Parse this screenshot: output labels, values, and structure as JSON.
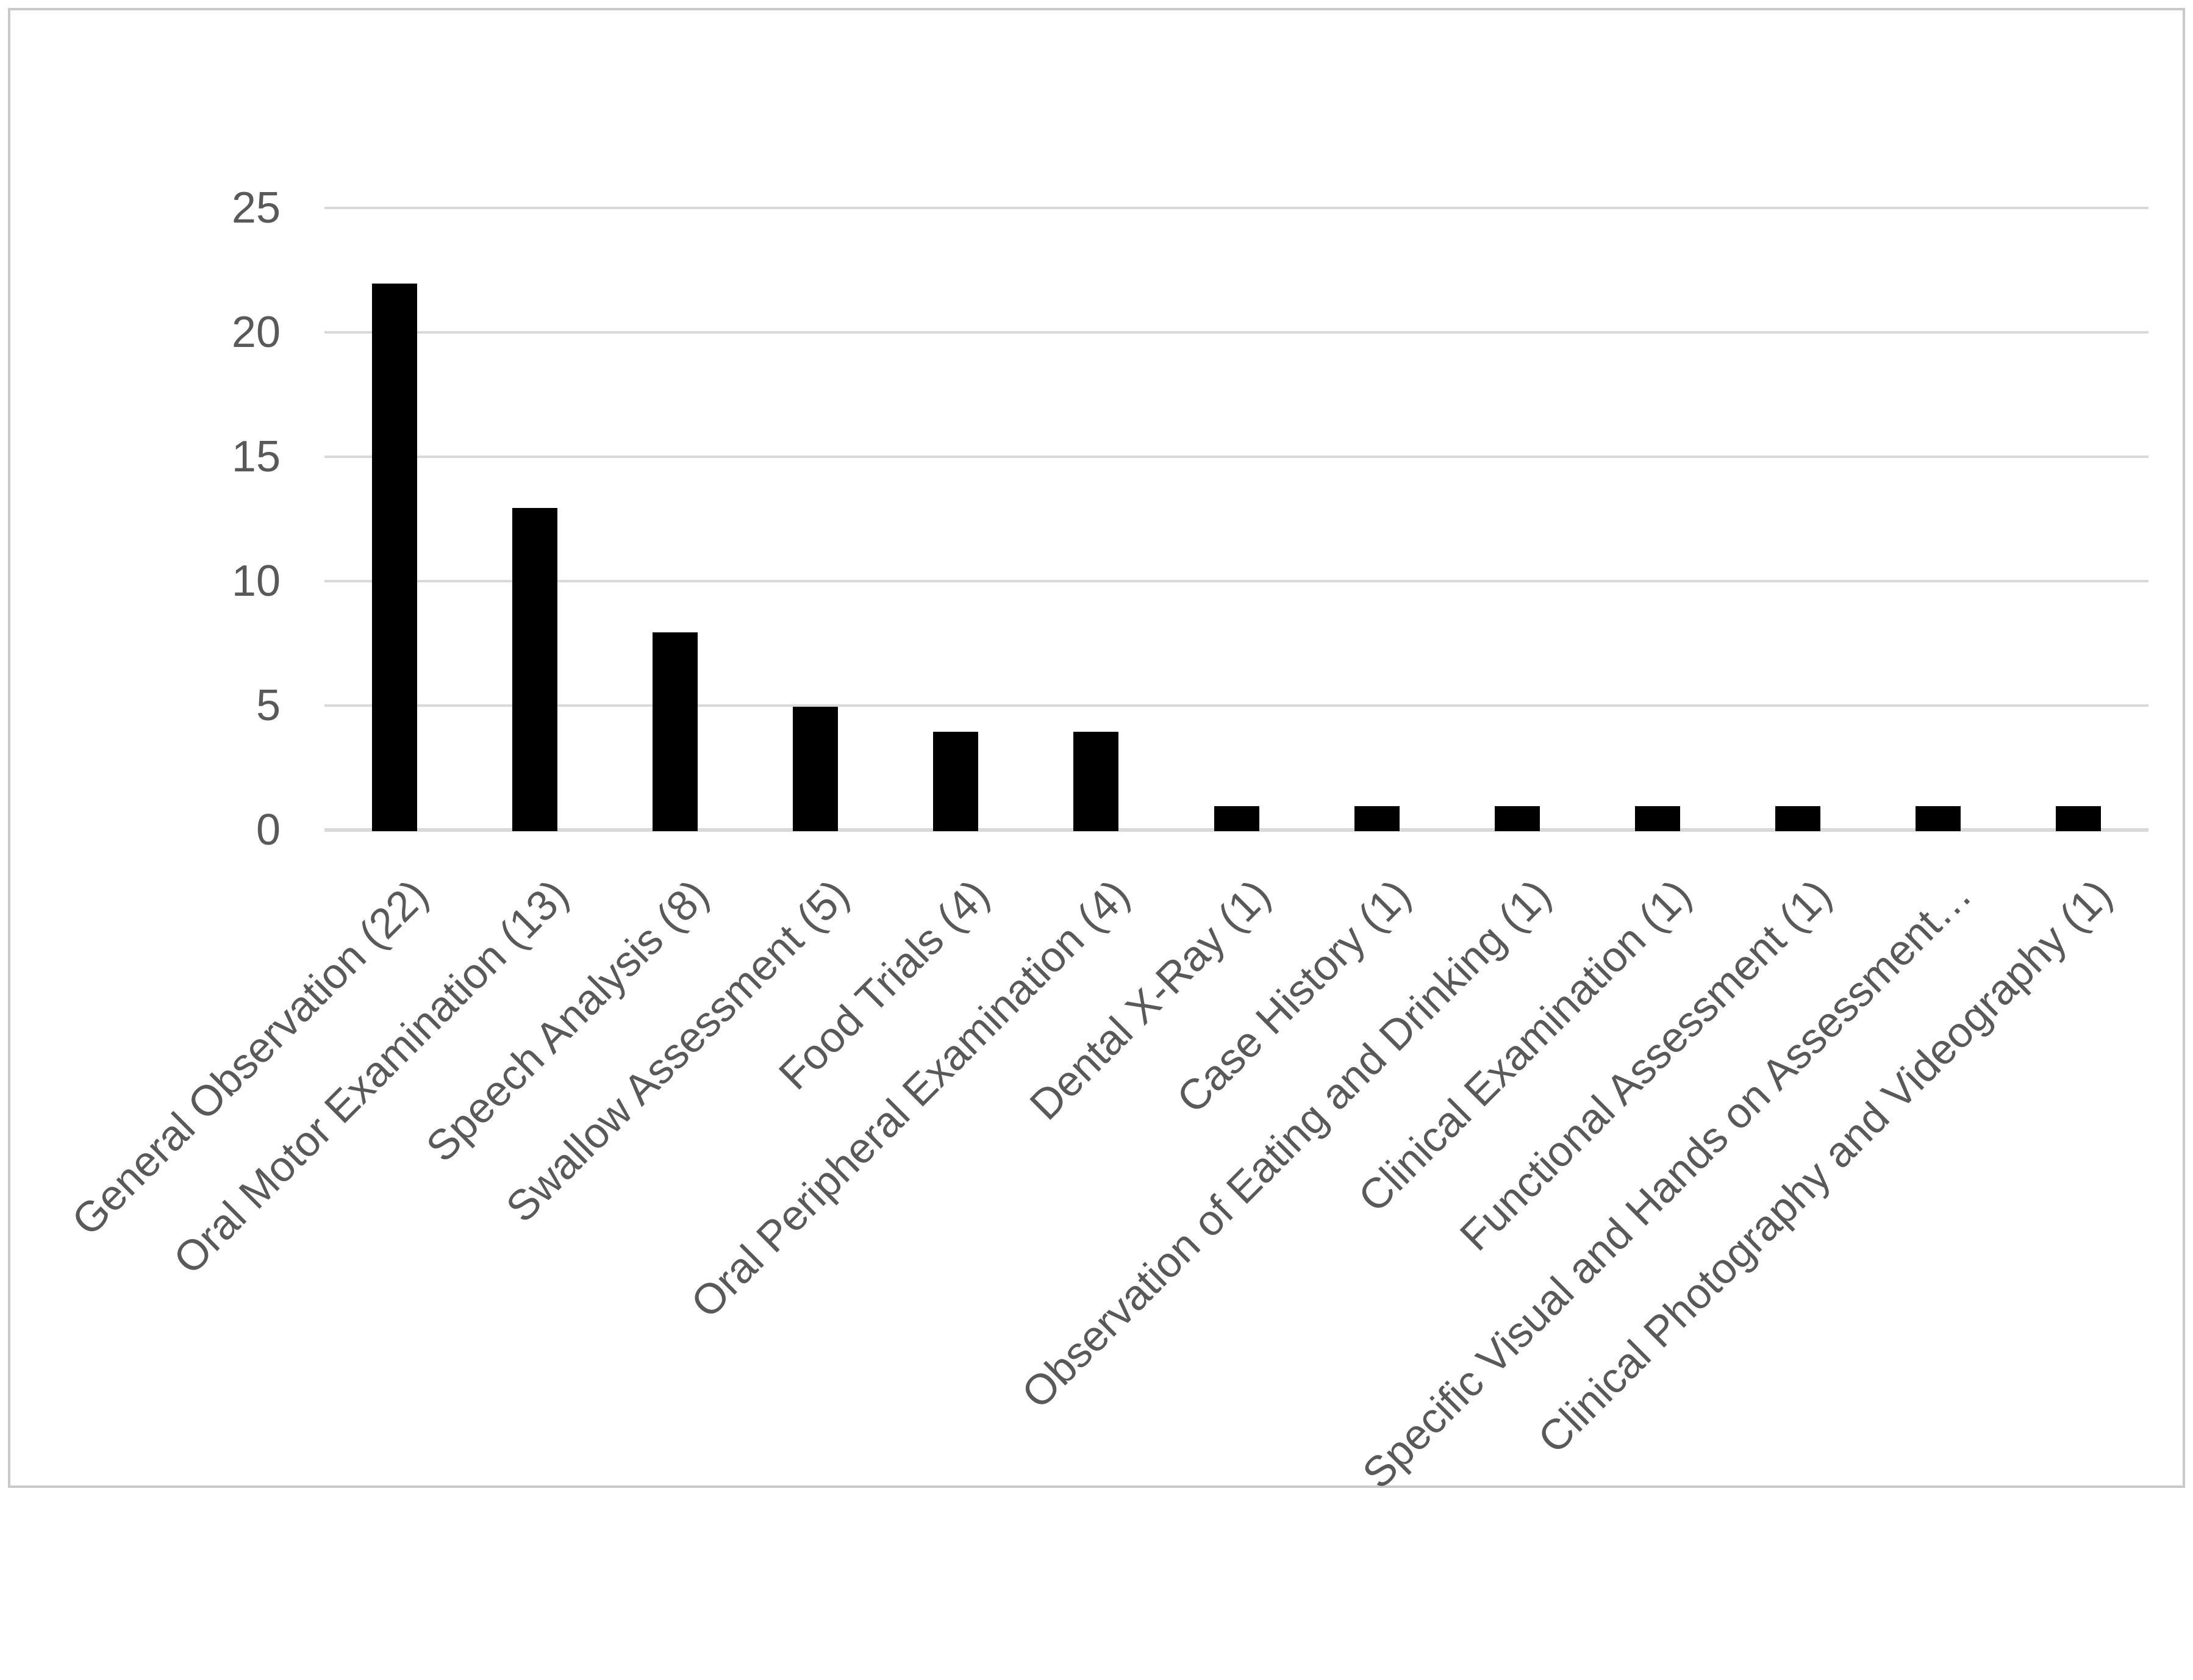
{
  "chart_data": {
    "type": "bar",
    "title": "",
    "xlabel": "",
    "ylabel": "",
    "categories": [
      "General Observation (22)",
      "Oral Motor Examination (13)",
      "Speech Analysis (8)",
      "Swallow Assessment (5)",
      "Food Trials (4)",
      "Oral Peripheral Examination (4)",
      "Dental X-Ray (1)",
      "Case History (1)",
      "Observation of Eating and Drinking (1)",
      "Clinical Examination (1)",
      "Functional Assessment (1)",
      "Specific Visual and Hands on Assessment…",
      "Clinical Photography and Videography (1)"
    ],
    "values": [
      22,
      13,
      8,
      5,
      4,
      4,
      1,
      1,
      1,
      1,
      1,
      1,
      1
    ],
    "ylim": [
      0,
      25
    ],
    "yticks": [
      0,
      5,
      10,
      15,
      20,
      25
    ],
    "grid": true,
    "legend": "none",
    "bar_color": "#000000",
    "label_color": "#595959",
    "gridline_color": "#d9d9d9",
    "axis_line_color": "#d9d9d9",
    "border_color": "#c9c9c9"
  }
}
